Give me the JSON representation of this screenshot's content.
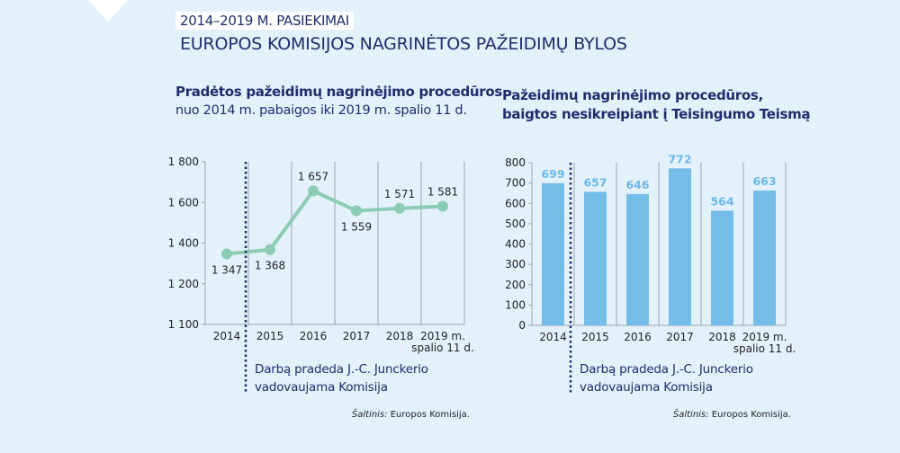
{
  "header": {
    "kicker": "2014–2019 M. PASIEKIMAI",
    "title": "EUROPOS KOMISIJOS NAGRINĖTOS PAŽEIDIMŲ BYLOS"
  },
  "colors": {
    "background": "#e3f1fb",
    "text": "#1f2d6b",
    "line": "#8ccbb4",
    "bar": "#74bde9",
    "bar_label": "#6cb8e8",
    "grid": "#9aa3ad"
  },
  "annotation": {
    "line1": "Darbą pradeda J.-C. Junckerio",
    "line2": "vadovaujama Komisija"
  },
  "source": {
    "label": "Šaltinis:",
    "text": " Europos Komisija."
  },
  "chart_data": [
    {
      "type": "line",
      "title": "Pradėtos pažeidimų nagrinėjimo procedūros",
      "subtitle": "nuo 2014 m. pabaigos iki 2019 m. spalio 11 d.",
      "categories": [
        "2014",
        "2015",
        "2016",
        "2017",
        "2018",
        "2019 m.|spalio 11 d."
      ],
      "values": [
        1347,
        1368,
        1657,
        1559,
        1571,
        1581
      ],
      "data_labels": [
        "1 347",
        "1 368",
        "1 657",
        "1 559",
        "1 571",
        "1 581"
      ],
      "yticks": [
        1100,
        1200,
        1400,
        1600,
        1800
      ],
      "ytick_labels": [
        "1 100",
        "1 200",
        "1 400",
        "1 600",
        "1 800"
      ],
      "ylim": [
        1100,
        1800
      ],
      "grid": "vertical",
      "marker_after": "2014"
    },
    {
      "type": "bar",
      "title": "Pažeidimų nagrinėjimo procedūros,",
      "subtitle": "baigtos nesikreipiant į Teisingumo Teismą",
      "categories": [
        "2014",
        "2015",
        "2016",
        "2017",
        "2018",
        "2019 m.|spalio 11 d."
      ],
      "values": [
        699,
        657,
        646,
        772,
        564,
        663
      ],
      "yticks": [
        0,
        100,
        200,
        300,
        400,
        500,
        600,
        700,
        800
      ],
      "ylim": [
        0,
        800
      ],
      "grid": "vertical",
      "marker_after": "2014"
    }
  ]
}
